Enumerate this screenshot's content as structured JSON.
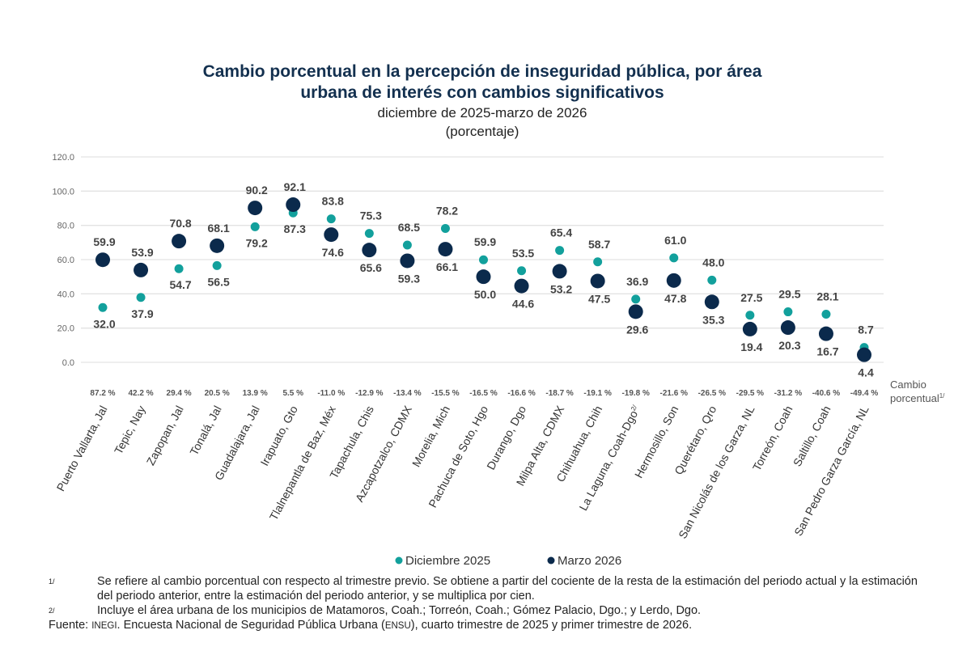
{
  "colors": {
    "dic": "#12a09c",
    "mar": "#0b2a4c",
    "title": "#13304f"
  },
  "chart_data": {
    "type": "scatter",
    "title": "Cambio porcentual en la percepción de inseguridad pública, por área urbana de interés con cambios significativos",
    "subtitle": "diciembre de 2025-marzo de 2026",
    "unit": "(porcentaje)",
    "ylim": [
      0,
      120
    ],
    "yticks": [
      "0.0",
      "20.0",
      "40.0",
      "60.0",
      "80.0",
      "100.0",
      "120.0"
    ],
    "grid": true,
    "legend_position": "bottom",
    "change_label": "Cambio porcentual",
    "change_label_sup": "1/",
    "categories": [
      "Puerto Vallarta, Jal",
      "Tepic, Nay",
      "Zapopan, Jal",
      "Tonalá, Jal",
      "Guadalajara, Jal",
      "Irapuato, Gto",
      "Tlalnepantla de Baz, Méx",
      "Tapachula, Chis",
      "Azcapotzalco, CDMX",
      "Morelia, Mich",
      "Pachuca de Soto, Hgo",
      "Durango, Dgo",
      "Milpa Alta, CDMX",
      "Chihuahua, Chih",
      "La Laguna, Coah-Dgo",
      "Hermosillo, Son",
      "Querétaro, Qro",
      "San Nicolás de los Garza, NL",
      "Torreón, Coah",
      "Saltillo, Coah",
      "San Pedro Garza García, NL"
    ],
    "category_sup": {
      "14": "2/"
    },
    "changes": [
      "87.2 %",
      "42.2 %",
      "29.4 %",
      "20.5 %",
      "13.9 %",
      "5.5 %",
      "-11.0 %",
      "-12.9 %",
      "-13.4 %",
      "-15.5 %",
      "-16.5 %",
      "-16.6 %",
      "-18.7 %",
      "-19.1 %",
      "-19.8 %",
      "-21.6 %",
      "-26.5 %",
      "-29.5 %",
      "-31.2 %",
      "-40.6 %",
      "-49.4 %"
    ],
    "series": [
      {
        "name": "Diciembre 2025",
        "values": [
          32.0,
          37.9,
          54.7,
          56.5,
          79.2,
          87.3,
          83.8,
          75.3,
          68.5,
          78.2,
          59.9,
          53.5,
          65.4,
          58.7,
          36.9,
          61.0,
          48.0,
          27.5,
          29.5,
          28.1,
          8.7
        ]
      },
      {
        "name": "Marzo 2026",
        "values": [
          59.9,
          53.9,
          70.8,
          68.1,
          90.2,
          92.1,
          74.6,
          65.6,
          59.3,
          66.1,
          50.0,
          44.6,
          53.2,
          47.5,
          29.6,
          47.8,
          35.3,
          19.4,
          20.3,
          16.7,
          4.4
        ]
      }
    ]
  },
  "title": {
    "line1": "Cambio porcentual en la percepción de inseguridad pública, por área",
    "line2": "urbana de interés con cambios significativos"
  },
  "notes": {
    "n1_mark": "1/",
    "n1": "Se refiere al cambio porcentual con respecto al trimestre previo. Se obtiene a partir del cociente de la resta de la estimación del periodo actual y la estimación del periodo anterior, entre la estimación del periodo anterior, y se multiplica por cien.",
    "n2_mark": "2/",
    "n2": "Incluye el área urbana de los municipios de Matamoros, Coah.; Torreón, Coah.; Gómez Palacio, Dgo.; y Lerdo, Dgo.",
    "source_label": "Fuente:",
    "source_org": "INEGI",
    "source_a": ". Encuesta Nacional de Seguridad Pública Urbana (",
    "source_abbr": "ENSU",
    "source_b": "), cuarto trimestre de 2025 y primer trimestre de 2026."
  }
}
